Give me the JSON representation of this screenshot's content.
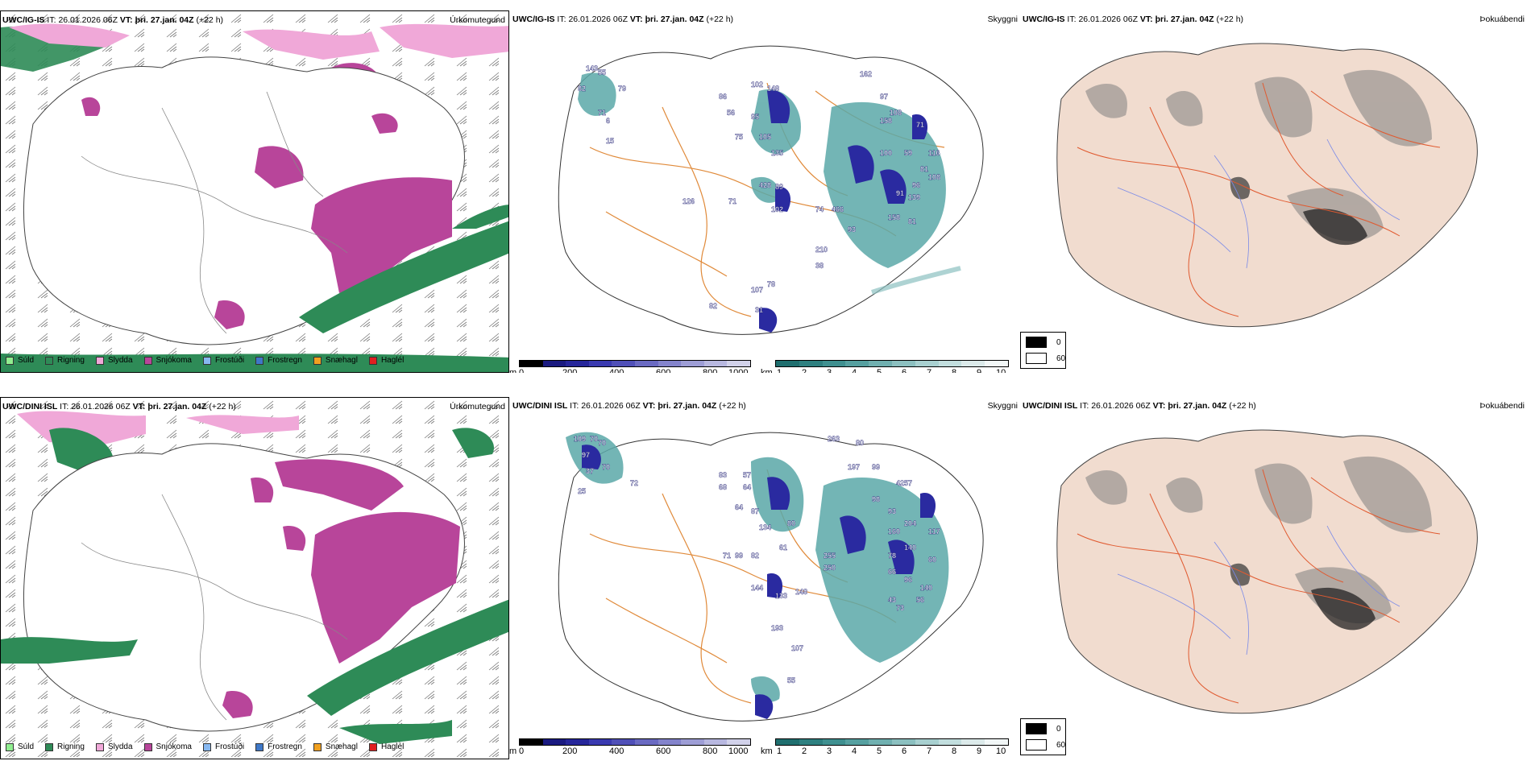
{
  "rows": [
    {
      "model": "UWC/IG-IS",
      "it_label": "IT:",
      "it_value": "26.01.2026 06Z",
      "vt_label": "VT:",
      "vt_value": "þri. 27.jan. 04Z",
      "lead": "(+22 h)"
    },
    {
      "model": "UWC/DINI ISL",
      "it_label": "IT:",
      "it_value": "26.01.2026 06Z",
      "vt_label": "VT:",
      "vt_value": "þri. 27.jan. 04Z",
      "lead": "(+22 h)"
    }
  ],
  "panels": {
    "precip_type": "Úrkomutegund",
    "cloud": "Skyggni",
    "fog": "Þokuábendi"
  },
  "precip_legend": [
    {
      "label": "Súld",
      "color": "#90ee90"
    },
    {
      "label": "Rigning",
      "color": "#2e8b57"
    },
    {
      "label": "Slydda",
      "color": "#f0a8d8"
    },
    {
      "label": "Snjókoma",
      "color": "#b8459a"
    },
    {
      "label": "Frostúði",
      "color": "#87b8f0"
    },
    {
      "label": "Frostregn",
      "color": "#3f78c8"
    },
    {
      "label": "Snæhagl",
      "color": "#f0a020"
    },
    {
      "label": "Haglél",
      "color": "#e02020"
    }
  ],
  "height_bar": {
    "unit": "m",
    "ticks": [
      "0",
      "200",
      "400",
      "600",
      "800",
      "1000"
    ],
    "colors": [
      "#000000",
      "#1a1a80",
      "#26269a",
      "#3a3ab0",
      "#5050b8",
      "#6a6ac2",
      "#8484cc",
      "#9e9ed6",
      "#b8b8e0",
      "#d2d2ea"
    ]
  },
  "visibility_bar": {
    "unit": "km",
    "ticks": [
      "1",
      "2",
      "3",
      "4",
      "5",
      "6",
      "7",
      "8",
      "9",
      "10"
    ],
    "colors": [
      "#1f6f6f",
      "#2e8080",
      "#3f9090",
      "#56a0a0",
      "#70b0b0",
      "#8cc0c0",
      "#a8d0d0",
      "#c2dede",
      "#dceaea",
      "#f2f7f7"
    ]
  },
  "fog_key": {
    "top_label": "0",
    "bottom_label": "60"
  },
  "cloud_labels_top": [
    "143",
    "55",
    "82",
    "79",
    "71",
    "6",
    "15",
    "86",
    "102",
    "148",
    "56",
    "95",
    "75",
    "105",
    "135",
    "428",
    "71",
    "126",
    "89",
    "102",
    "74",
    "466",
    "93",
    "210",
    "38",
    "107",
    "78",
    "31",
    "82",
    "162",
    "97",
    "108",
    "158",
    "71",
    "100",
    "59",
    "116",
    "81",
    "108",
    "96",
    "91",
    "139",
    "158",
    "81"
  ],
  "cloud_labels_bottom": [
    "109",
    "70",
    "70",
    "97",
    "37",
    "70",
    "72",
    "25",
    "83",
    "57",
    "68",
    "64",
    "64",
    "87",
    "134",
    "71",
    "99",
    "82",
    "144",
    "133",
    "148",
    "61",
    "80",
    "255",
    "250",
    "193",
    "107",
    "55",
    "263",
    "80",
    "197",
    "99",
    "42",
    "98",
    "93",
    "57",
    "160",
    "204",
    "117",
    "140",
    "60",
    "78",
    "66",
    "96",
    "140",
    "56",
    "43",
    "73"
  ]
}
